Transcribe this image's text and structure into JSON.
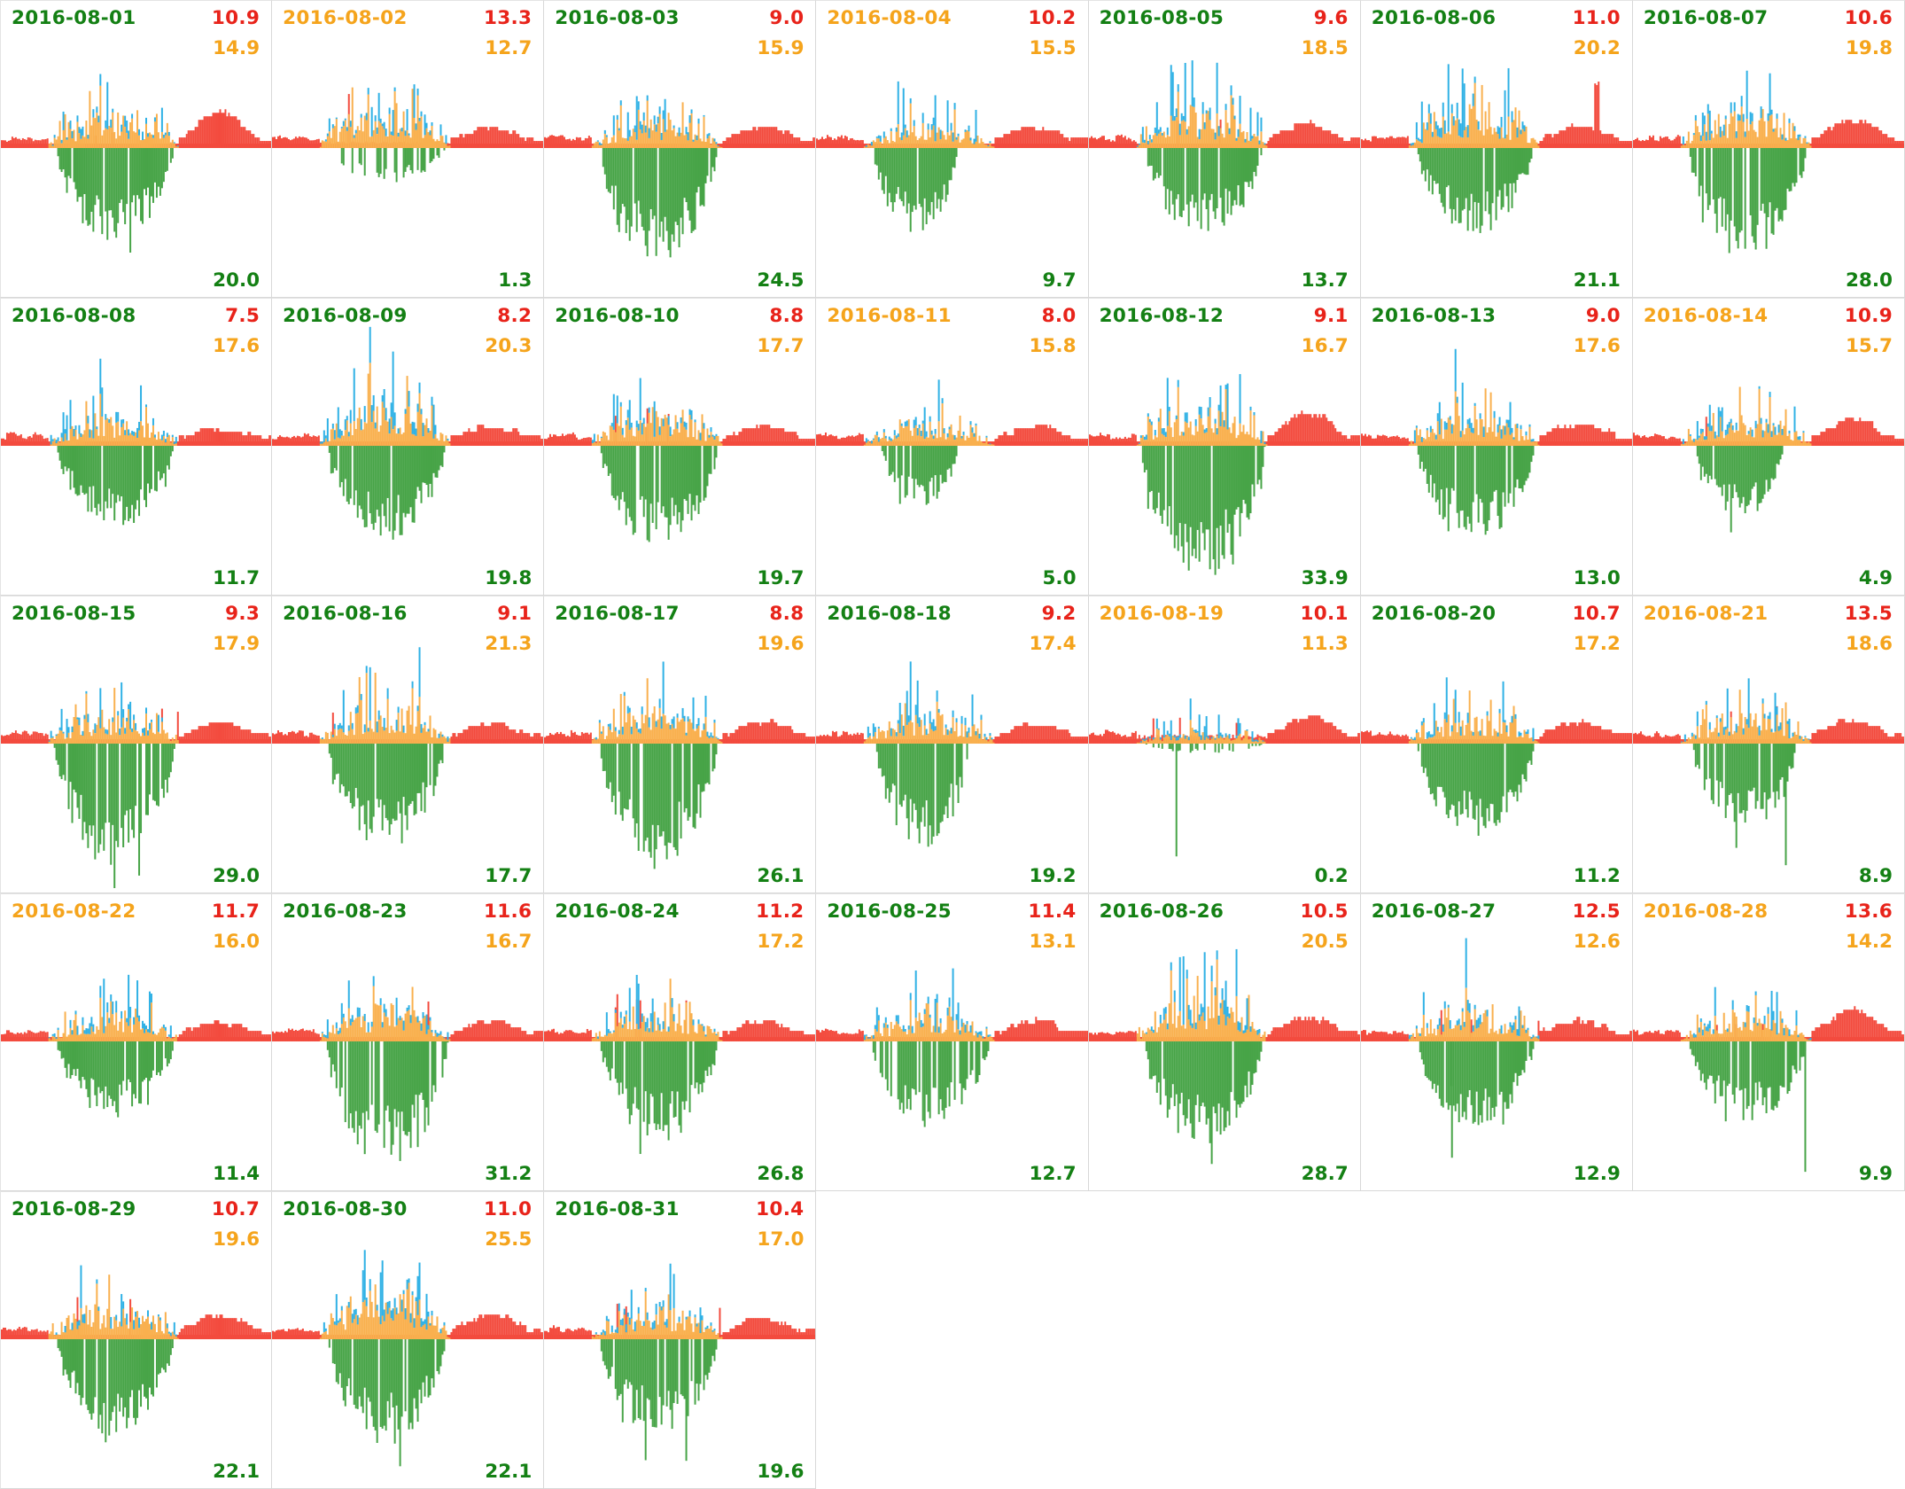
{
  "colors": {
    "date_green": "#148014",
    "date_orange": "#f5a41c",
    "value_red": "#e8231a",
    "value_orange": "#f5a41c",
    "value_green": "#148014",
    "chart_red": "#f34b3e",
    "chart_orange": "#f9b04e",
    "chart_blue": "#2fb1e5",
    "chart_green": "#47a447",
    "cell_border": "#d8d8d8",
    "background": "#ffffff"
  },
  "chart_data": {
    "type": "area",
    "subtype": "daily-small-multiples",
    "layout": {
      "columns": 7,
      "rows": 5,
      "cell_count": 31,
      "axes_visible": false,
      "grid": false,
      "legend": false
    },
    "baseline_fraction": 0.497,
    "series_colors": [
      "red",
      "orange",
      "blue",
      "green"
    ],
    "days": [
      {
        "date": "2016-08-01",
        "date_color": "green",
        "max_red": "10.9",
        "mid_orange": "14.9",
        "total_green": "20.0",
        "p": {
          "b": 0.55,
          "o": 0.42,
          "g": 0.68,
          "rb": 35,
          "rd": 0.08,
          "rs": 20
        }
      },
      {
        "date": "2016-08-02",
        "date_color": "orange",
        "max_red": "13.3",
        "mid_orange": "12.7",
        "total_green": "1.3",
        "p": {
          "b": 0.35,
          "o": 0.5,
          "g": 0.25,
          "rb": 16,
          "rd": 0.5,
          "rs": 65,
          "cov": 0.4
        }
      },
      {
        "date": "2016-08-03",
        "date_color": "green",
        "max_red": "9.0",
        "mid_orange": "15.9",
        "total_green": "24.5",
        "p": {
          "b": 0.42,
          "o": 0.36,
          "g": 0.82,
          "rb": 16,
          "rd": 0.08,
          "rs": 0
        }
      },
      {
        "date": "2016-08-04",
        "date_color": "orange",
        "max_red": "10.2",
        "mid_orange": "15.5",
        "total_green": "9.7",
        "p": {
          "b": 0.46,
          "o": 0.3,
          "g": 0.62,
          "rb": 15,
          "rd": 0.1,
          "rs": 0,
          "gs": 0.21,
          "ge": 0.52
        }
      },
      {
        "date": "2016-08-05",
        "date_color": "green",
        "max_red": "9.6",
        "mid_orange": "18.5",
        "total_green": "13.7",
        "p": {
          "b": 0.52,
          "o": 0.4,
          "g": 0.64,
          "rb": 18,
          "rd": 0.1,
          "rs": 40
        }
      },
      {
        "date": "2016-08-06",
        "date_color": "green",
        "max_red": "11.0",
        "mid_orange": "20.2",
        "total_green": "21.1",
        "p": {
          "b": 0.72,
          "o": 0.48,
          "g": 0.62,
          "rb": 18,
          "rd": 0.1,
          "rs": 0,
          "rrs": 70
        }
      },
      {
        "date": "2016-08-07",
        "date_color": "green",
        "max_red": "10.6",
        "mid_orange": "19.8",
        "total_green": "28.0",
        "p": {
          "b": 0.55,
          "o": 0.46,
          "g": 0.82,
          "rb": 24,
          "rd": 0.08,
          "rs": 0
        }
      },
      {
        "date": "2016-08-08",
        "date_color": "green",
        "max_red": "7.5",
        "mid_orange": "17.6",
        "total_green": "11.7",
        "p": {
          "b": 0.46,
          "o": 0.34,
          "g": 0.6,
          "rb": 12,
          "rd": 0.08,
          "rs": 0
        }
      },
      {
        "date": "2016-08-09",
        "date_color": "green",
        "max_red": "8.2",
        "mid_orange": "20.3",
        "total_green": "19.8",
        "p": {
          "b": 0.78,
          "o": 0.55,
          "g": 0.68,
          "rb": 13,
          "rd": 0.08,
          "rs": 0
        }
      },
      {
        "date": "2016-08-10",
        "date_color": "green",
        "max_red": "8.8",
        "mid_orange": "17.7",
        "total_green": "19.7",
        "p": {
          "b": 0.5,
          "o": 0.4,
          "g": 0.74,
          "rb": 14,
          "rd": 0.08,
          "rs": 55
        }
      },
      {
        "date": "2016-08-11",
        "date_color": "orange",
        "max_red": "8.0",
        "mid_orange": "15.8",
        "total_green": "5.0",
        "p": {
          "b": 0.38,
          "o": 0.3,
          "g": 0.46,
          "rb": 13,
          "rd": 0.1,
          "rs": 0,
          "gs": 0.24,
          "ge": 0.52
        }
      },
      {
        "date": "2016-08-12",
        "date_color": "green",
        "max_red": "9.1",
        "mid_orange": "16.7",
        "total_green": "33.9",
        "p": {
          "b": 0.55,
          "o": 0.45,
          "g": 0.97,
          "rb": 32,
          "rd": 0.08,
          "rs": 0,
          "gs": 0.19,
          "ge": 0.645
        }
      },
      {
        "date": "2016-08-13",
        "date_color": "green",
        "max_red": "9.0",
        "mid_orange": "17.6",
        "total_green": "13.0",
        "p": {
          "b": 0.46,
          "o": 0.38,
          "g": 0.68,
          "rb": 17,
          "rd": 0.08,
          "rs": 0
        }
      },
      {
        "date": "2016-08-14",
        "date_color": "orange",
        "max_red": "10.9",
        "mid_orange": "15.7",
        "total_green": "4.9",
        "p": {
          "b": 0.42,
          "o": 0.38,
          "g": 0.52,
          "rb": 22,
          "rd": 0.15,
          "rs": 38,
          "gs": 0.23,
          "ge": 0.55
        }
      },
      {
        "date": "2016-08-15",
        "date_color": "green",
        "max_red": "9.3",
        "mid_orange": "17.9",
        "total_green": "29.0",
        "p": {
          "b": 0.42,
          "o": 0.38,
          "g": 0.9,
          "rb": 15,
          "rd": 0.08,
          "rs": 55,
          "gs": 0.195,
          "ge": 0.64
        }
      },
      {
        "date": "2016-08-16",
        "date_color": "green",
        "max_red": "9.1",
        "mid_orange": "21.3",
        "total_green": "17.7",
        "p": {
          "b": 0.52,
          "o": 0.48,
          "g": 0.76,
          "rb": 15,
          "rd": 0.1,
          "rs": 40
        }
      },
      {
        "date": "2016-08-17",
        "date_color": "green",
        "max_red": "8.8",
        "mid_orange": "19.6",
        "total_green": "26.1",
        "p": {
          "b": 0.5,
          "o": 0.42,
          "g": 0.86,
          "rb": 17,
          "rd": 0.08,
          "rs": 0
        }
      },
      {
        "date": "2016-08-18",
        "date_color": "green",
        "max_red": "9.2",
        "mid_orange": "17.4",
        "total_green": "19.2",
        "p": {
          "b": 0.52,
          "o": 0.38,
          "g": 0.76,
          "rb": 13,
          "rd": 0.08,
          "rs": 0,
          "gs": 0.22,
          "ge": 0.56
        }
      },
      {
        "date": "2016-08-19",
        "date_color": "orange",
        "max_red": "10.1",
        "mid_orange": "11.3",
        "total_green": "0.2",
        "p": {
          "b": 0.22,
          "o": 0.16,
          "g": 0.07,
          "rb": 22,
          "rd": 0.7,
          "rs": 25,
          "cov": 0.3,
          "deep": [
            0.32,
            128
          ]
        }
      },
      {
        "date": "2016-08-20",
        "date_color": "green",
        "max_red": "10.7",
        "mid_orange": "17.2",
        "total_green": "11.2",
        "p": {
          "b": 0.46,
          "o": 0.36,
          "g": 0.68,
          "rb": 17,
          "rd": 0.1,
          "rs": 40
        }
      },
      {
        "date": "2016-08-21",
        "date_color": "orange",
        "max_red": "13.5",
        "mid_orange": "18.6",
        "total_green": "8.9",
        "p": {
          "b": 0.42,
          "o": 0.38,
          "g": 0.62,
          "rb": 19,
          "rd": 0.12,
          "rs": 45,
          "gs": 0.22,
          "ge": 0.6,
          "deep": [
            0.56,
            138
          ]
        }
      },
      {
        "date": "2016-08-22",
        "date_color": "orange",
        "max_red": "11.7",
        "mid_orange": "16.0",
        "total_green": "11.4",
        "p": {
          "b": 0.55,
          "o": 0.36,
          "g": 0.56,
          "rb": 13,
          "rd": 0.1,
          "rs": 60
        }
      },
      {
        "date": "2016-08-23",
        "date_color": "green",
        "max_red": "11.6",
        "mid_orange": "16.7",
        "total_green": "31.2",
        "p": {
          "b": 0.46,
          "o": 0.42,
          "g": 0.9,
          "rb": 15,
          "rd": 0.08,
          "rs": 45,
          "gs": 0.2,
          "ge": 0.645
        }
      },
      {
        "date": "2016-08-24",
        "date_color": "green",
        "max_red": "11.2",
        "mid_orange": "17.2",
        "total_green": "26.8",
        "p": {
          "b": 0.42,
          "o": 0.42,
          "g": 0.74,
          "rb": 15,
          "rd": 0.08,
          "rs": 55
        }
      },
      {
        "date": "2016-08-25",
        "date_color": "green",
        "max_red": "11.4",
        "mid_orange": "13.1",
        "total_green": "12.7",
        "p": {
          "b": 0.46,
          "o": 0.33,
          "g": 0.62,
          "rb": 15,
          "rd": 0.3,
          "rs": 0,
          "cov": 0.6
        }
      },
      {
        "date": "2016-08-26",
        "date_color": "green",
        "max_red": "10.5",
        "mid_orange": "20.5",
        "total_green": "28.7",
        "p": {
          "b": 0.66,
          "o": 0.55,
          "g": 0.76,
          "rb": 17,
          "rd": 0.08,
          "rs": 40
        }
      },
      {
        "date": "2016-08-27",
        "date_color": "green",
        "max_red": "12.5",
        "mid_orange": "12.6",
        "total_green": "12.9",
        "p": {
          "b": 0.5,
          "o": 0.38,
          "g": 0.63,
          "rb": 15,
          "rd": 0.1,
          "rs": 35,
          "deep": [
            0.33,
            132
          ]
        }
      },
      {
        "date": "2016-08-28",
        "date_color": "orange",
        "max_red": "13.6",
        "mid_orange": "14.2",
        "total_green": "9.9",
        "p": {
          "b": 0.46,
          "o": 0.38,
          "g": 0.58,
          "rb": 28,
          "rd": 0.3,
          "rs": 25,
          "deep": [
            0.63,
            148
          ]
        }
      },
      {
        "date": "2016-08-29",
        "date_color": "green",
        "max_red": "10.7",
        "mid_orange": "19.6",
        "total_green": "22.1",
        "p": {
          "b": 0.52,
          "o": 0.45,
          "g": 0.7,
          "rb": 19,
          "rd": 0.1,
          "rs": 50
        }
      },
      {
        "date": "2016-08-30",
        "date_color": "green",
        "max_red": "11.0",
        "mid_orange": "25.5",
        "total_green": "22.1",
        "p": {
          "b": 0.52,
          "o": 0.62,
          "g": 0.76,
          "rb": 21,
          "rd": 0.08,
          "rs": 0
        }
      },
      {
        "date": "2016-08-31",
        "date_color": "green",
        "max_red": "10.4",
        "mid_orange": "17.0",
        "total_green": "19.6",
        "p": {
          "b": 0.46,
          "o": 0.38,
          "g": 0.7,
          "rb": 15,
          "rd": 0.08,
          "rs": 45,
          "deep": [
            0.52,
            138
          ]
        }
      }
    ]
  }
}
